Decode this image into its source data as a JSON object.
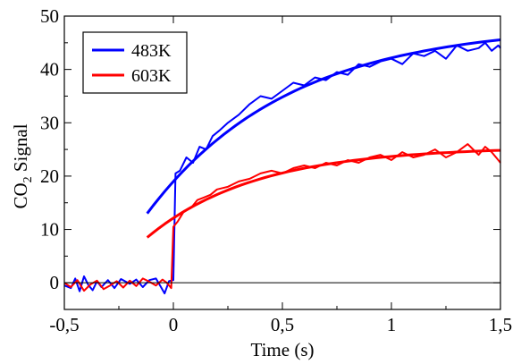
{
  "chart_data": {
    "type": "line",
    "title": "",
    "xlabel": "Time (s)",
    "ylabel": {
      "pre": "CO",
      "sub": "2",
      "post": " Signal"
    },
    "xlim": [
      -0.5,
      1.5
    ],
    "ylim": [
      -5,
      50
    ],
    "x_ticks": [
      {
        "value": -0.5,
        "label": "-0,5"
      },
      {
        "value": 0,
        "label": "0"
      },
      {
        "value": 0.5,
        "label": "0,5"
      },
      {
        "value": 1,
        "label": "1"
      },
      {
        "value": 1.5,
        "label": "1,5"
      }
    ],
    "y_ticks": [
      {
        "value": 0,
        "label": "0"
      },
      {
        "value": 10,
        "label": "10"
      },
      {
        "value": 20,
        "label": "20"
      },
      {
        "value": 30,
        "label": "30"
      },
      {
        "value": 40,
        "label": "40"
      },
      {
        "value": 50,
        "label": "50"
      }
    ],
    "zero_line": true,
    "grid": false,
    "legend_position": "top-left",
    "series": [
      {
        "name": "483K",
        "color": "#0000ff",
        "x": [
          -0.5,
          -0.47,
          -0.45,
          -0.43,
          -0.41,
          -0.39,
          -0.37,
          -0.35,
          -0.33,
          -0.3,
          -0.27,
          -0.24,
          -0.2,
          -0.17,
          -0.14,
          -0.11,
          -0.08,
          -0.06,
          -0.04,
          -0.02,
          0.0,
          0.01,
          0.03,
          0.06,
          0.09,
          0.12,
          0.15,
          0.18,
          0.21,
          0.25,
          0.3,
          0.35,
          0.4,
          0.45,
          0.5,
          0.55,
          0.6,
          0.65,
          0.7,
          0.75,
          0.8,
          0.85,
          0.9,
          0.95,
          1.0,
          1.05,
          1.1,
          1.15,
          1.2,
          1.25,
          1.3,
          1.35,
          1.4,
          1.43,
          1.46,
          1.49,
          1.5
        ],
        "values": [
          -0.5,
          -1.0,
          0.8,
          -1.6,
          1.2,
          -0.4,
          -1.4,
          0.3,
          -0.8,
          0.5,
          -1.0,
          0.7,
          -0.2,
          0.6,
          -0.8,
          0.5,
          0.8,
          -0.6,
          -2.0,
          0.3,
          0.5,
          20.5,
          21.0,
          23.5,
          22.5,
          25.5,
          25.0,
          27.5,
          28.5,
          30.0,
          31.5,
          33.5,
          35.0,
          34.5,
          36.0,
          37.5,
          37.0,
          38.5,
          38.0,
          39.5,
          39.0,
          41.0,
          40.5,
          41.5,
          42.0,
          41.0,
          43.0,
          42.5,
          43.5,
          42.0,
          44.5,
          43.5,
          44.0,
          45.0,
          43.5,
          44.5,
          44.0
        ]
      },
      {
        "name": "603K",
        "color": "#ff0000",
        "x": [
          -0.5,
          -0.47,
          -0.44,
          -0.41,
          -0.38,
          -0.35,
          -0.32,
          -0.29,
          -0.26,
          -0.23,
          -0.2,
          -0.17,
          -0.14,
          -0.11,
          -0.08,
          -0.05,
          -0.03,
          -0.01,
          0.0,
          0.02,
          0.05,
          0.08,
          0.11,
          0.14,
          0.17,
          0.2,
          0.25,
          0.3,
          0.35,
          0.4,
          0.45,
          0.5,
          0.55,
          0.6,
          0.65,
          0.7,
          0.75,
          0.8,
          0.85,
          0.9,
          0.95,
          1.0,
          1.05,
          1.1,
          1.15,
          1.2,
          1.25,
          1.3,
          1.35,
          1.4,
          1.43,
          1.46,
          1.49,
          1.5
        ],
        "values": [
          0.0,
          -0.8,
          0.5,
          -1.5,
          -0.3,
          0.4,
          -1.2,
          -0.5,
          0.3,
          -0.9,
          0.4,
          -0.6,
          0.8,
          0.2,
          -0.5,
          0.6,
          0.0,
          -1.0,
          10.5,
          11.5,
          13.5,
          14.0,
          15.5,
          16.0,
          16.5,
          17.5,
          18.0,
          19.0,
          19.5,
          20.5,
          21.0,
          20.5,
          21.5,
          22.0,
          21.5,
          22.5,
          22.0,
          23.0,
          22.5,
          23.5,
          24.0,
          23.0,
          24.5,
          23.5,
          24.0,
          25.0,
          23.5,
          24.5,
          26.0,
          24.0,
          25.5,
          24.5,
          23.0,
          22.5
        ]
      }
    ],
    "fits": [
      {
        "series": "483K",
        "color": "#0000ff",
        "x_start": -0.12,
        "x_end": 1.5,
        "y_start": 13,
        "y_inf": 48.5,
        "tau": 0.65
      },
      {
        "series": "603K",
        "color": "#ff0000",
        "x_start": -0.12,
        "x_end": 1.5,
        "y_start": 8.5,
        "y_inf": 25.5,
        "tau": 0.5
      }
    ]
  }
}
